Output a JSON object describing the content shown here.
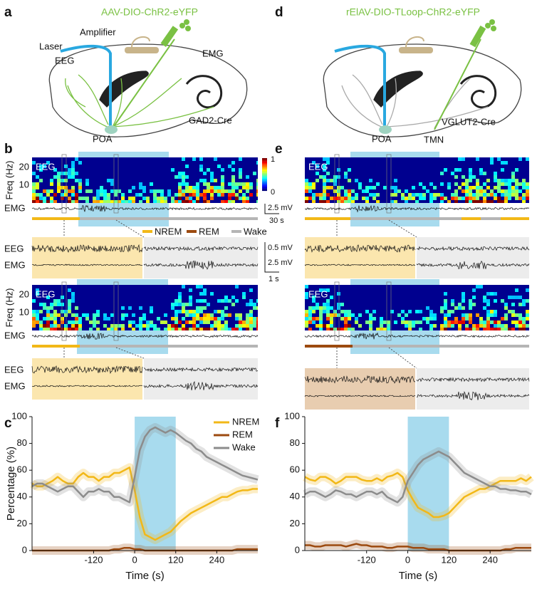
{
  "panel_a": {
    "label": "a",
    "title": "AAV-DIO-ChR2-eYFP",
    "annotations": [
      "Laser",
      "Amplifier",
      "EEG",
      "EMG",
      "GAD2-Cre",
      "POA"
    ]
  },
  "panel_d": {
    "label": "d",
    "title": "rElAV-DIO-TLoop-ChR2-eYFP",
    "annotations": [
      "POA",
      "TMN",
      "VGLUT2-Cre"
    ]
  },
  "panel_b": {
    "label": "b",
    "y_label": "Freq (Hz)",
    "yticks": [
      "20",
      "10"
    ],
    "spectrogram_label": "EEG",
    "trace_label": "EMG",
    "colorbar_ticks": [
      "1",
      "0"
    ],
    "scale_bars": [
      "2.5 mV",
      "30 s",
      "0.5 mV",
      "2.5 mV",
      "1 s"
    ],
    "legend": [
      "NREM",
      "REM",
      "Wake"
    ],
    "zoom_labels": [
      "EEG",
      "EMG"
    ]
  },
  "panel_e": {
    "label": "e",
    "spectrogram_label": "EEG"
  },
  "chart_data": [
    {
      "type": "line",
      "panel_label": "c",
      "y_label": "Percentage (%)",
      "x_label": "Time (s)",
      "legend": "top-right",
      "shade": [
        0,
        120
      ],
      "shade_color": "#a8dbee",
      "x": [
        -300,
        -285,
        -270,
        -255,
        -240,
        -225,
        -210,
        -195,
        -180,
        -165,
        -150,
        -135,
        -120,
        -105,
        -90,
        -75,
        -60,
        -45,
        -30,
        -15,
        0,
        15,
        30,
        45,
        60,
        75,
        90,
        105,
        120,
        135,
        150,
        165,
        180,
        195,
        210,
        225,
        240,
        255,
        270,
        285,
        300,
        315,
        330,
        345,
        360
      ],
      "series": [
        {
          "name": "NREM",
          "color": "#f2b817",
          "values": [
            50,
            48,
            48,
            50,
            52,
            55,
            52,
            50,
            50,
            55,
            58,
            55,
            55,
            52,
            55,
            55,
            58,
            58,
            60,
            62,
            45,
            25,
            12,
            10,
            8,
            10,
            12,
            14,
            18,
            22,
            25,
            28,
            30,
            32,
            34,
            36,
            38,
            40,
            40,
            42,
            44,
            45,
            45,
            46,
            46
          ]
        },
        {
          "name": "REM",
          "color": "#9c4a0f",
          "values": [
            0,
            0,
            0,
            0,
            0,
            0,
            0,
            0,
            0,
            0,
            0,
            0,
            0,
            0,
            0,
            0,
            1,
            1,
            2,
            2,
            1,
            1,
            0,
            0,
            0,
            0,
            0,
            0,
            0,
            0,
            0,
            0,
            0,
            0,
            0,
            0,
            0,
            0,
            0,
            0,
            1,
            1,
            1,
            1,
            1
          ]
        },
        {
          "name": "Wake",
          "color": "#8c8c8c",
          "values": [
            48,
            50,
            50,
            48,
            46,
            44,
            46,
            48,
            48,
            44,
            40,
            44,
            44,
            46,
            44,
            44,
            40,
            40,
            38,
            36,
            55,
            75,
            85,
            90,
            92,
            90,
            88,
            90,
            88,
            85,
            82,
            80,
            76,
            74,
            70,
            68,
            66,
            64,
            62,
            60,
            58,
            56,
            55,
            54,
            53
          ]
        }
      ],
      "xlim": [
        -300,
        360
      ],
      "ylim": [
        0,
        100
      ],
      "xticks": [
        -120,
        0,
        120,
        240
      ],
      "yticks": [
        0,
        20,
        40,
        60,
        80,
        100
      ]
    },
    {
      "type": "line",
      "panel_label": "f",
      "x_label": "Time (s)",
      "shade": [
        0,
        120
      ],
      "shade_color": "#a8dbee",
      "x": [
        -300,
        -285,
        -270,
        -255,
        -240,
        -225,
        -210,
        -195,
        -180,
        -165,
        -150,
        -135,
        -120,
        -105,
        -90,
        -75,
        -60,
        -45,
        -30,
        -15,
        0,
        15,
        30,
        45,
        60,
        75,
        90,
        105,
        120,
        135,
        150,
        165,
        180,
        195,
        210,
        225,
        240,
        255,
        270,
        285,
        300,
        315,
        330,
        345,
        360
      ],
      "series": [
        {
          "color": "#f2b817",
          "values": [
            55,
            53,
            52,
            55,
            55,
            53,
            50,
            52,
            55,
            55,
            55,
            53,
            52,
            52,
            54,
            52,
            55,
            56,
            58,
            55,
            45,
            38,
            32,
            30,
            28,
            25,
            25,
            26,
            28,
            32,
            36,
            40,
            42,
            44,
            46,
            46,
            48,
            50,
            52,
            52,
            52,
            52,
            54,
            52,
            55
          ]
        },
        {
          "color": "#9c4a0f",
          "values": [
            4,
            4,
            3,
            3,
            4,
            4,
            4,
            4,
            3,
            4,
            5,
            4,
            4,
            3,
            3,
            3,
            2,
            2,
            3,
            3,
            3,
            2,
            2,
            2,
            1,
            1,
            1,
            1,
            0,
            0,
            0,
            0,
            0,
            0,
            0,
            0,
            0,
            0,
            0,
            1,
            1,
            2,
            2,
            2,
            2
          ]
        },
        {
          "color": "#8c8c8c",
          "values": [
            42,
            44,
            44,
            42,
            40,
            42,
            45,
            44,
            42,
            42,
            40,
            42,
            44,
            44,
            42,
            44,
            40,
            38,
            36,
            40,
            52,
            58,
            64,
            68,
            70,
            72,
            74,
            72,
            70,
            66,
            62,
            58,
            56,
            54,
            52,
            50,
            48,
            48,
            46,
            46,
            45,
            45,
            44,
            44,
            42
          ]
        }
      ],
      "xlim": [
        -300,
        360
      ],
      "ylim": [
        0,
        100
      ],
      "xticks": [
        -120,
        0,
        120,
        240
      ],
      "yticks": [
        0,
        20,
        40,
        60,
        80,
        100
      ]
    }
  ]
}
